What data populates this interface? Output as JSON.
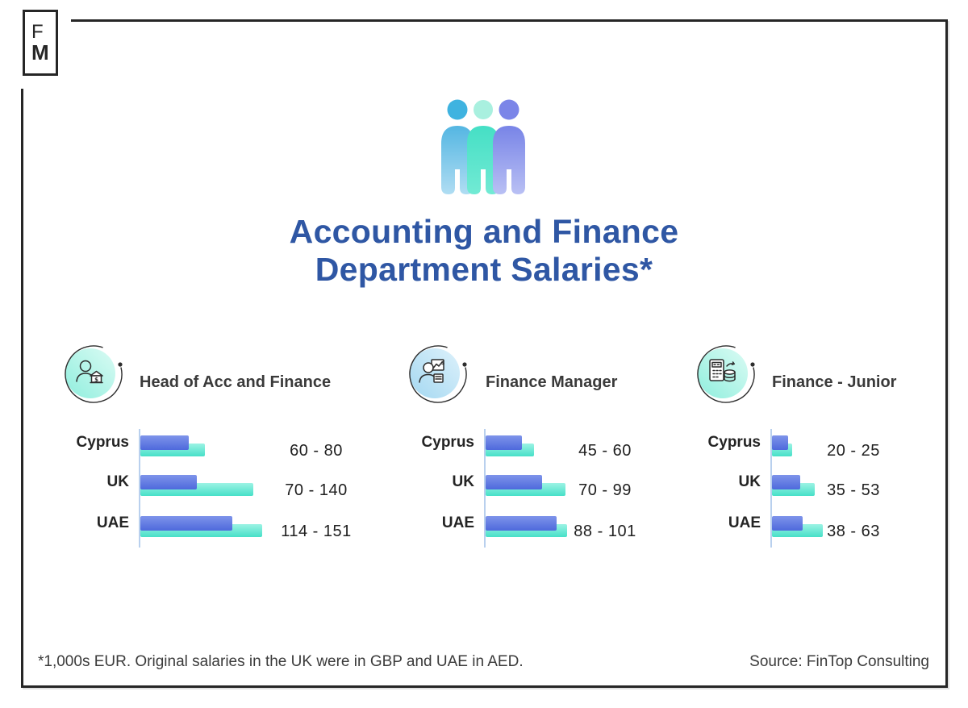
{
  "logo": {
    "letter1": "F",
    "letter2": "M"
  },
  "header": {
    "title_line1": "Accounting and Finance",
    "title_line2": "Department Salaries*"
  },
  "groups": [
    {
      "label": "Head of Acc and Finance",
      "icon": "person-bank-icon",
      "badge_theme": "mint"
    },
    {
      "label": "Finance Manager",
      "icon": "person-chart-calculator-icon",
      "badge_theme": "blue"
    },
    {
      "label": "Finance - Junior",
      "icon": "calculator-coins-icon",
      "badge_theme": "mint"
    }
  ],
  "chart_data": [
    {
      "type": "bar",
      "orientation": "horizontal",
      "title": "Head of Acc and Finance",
      "categories": [
        "Cyprus",
        "UK",
        "UAE"
      ],
      "series": [
        {
          "name": "salary min",
          "values": [
            60,
            70,
            114
          ]
        },
        {
          "name": "salary max",
          "values": [
            80,
            140,
            151
          ]
        }
      ],
      "range_labels": [
        "60 - 80",
        "70 - 140",
        "114 - 151"
      ],
      "unit": "1,000s EUR",
      "xlim": [
        0,
        160
      ],
      "grid": false,
      "legend": false
    },
    {
      "type": "bar",
      "orientation": "horizontal",
      "title": "Finance Manager",
      "categories": [
        "Cyprus",
        "UK",
        "UAE"
      ],
      "series": [
        {
          "name": "salary min",
          "values": [
            45,
            70,
            88
          ]
        },
        {
          "name": "salary max",
          "values": [
            60,
            99,
            101
          ]
        }
      ],
      "range_labels": [
        "45 - 60",
        "70 - 99",
        "88 - 101"
      ],
      "unit": "1,000s EUR",
      "xlim": [
        0,
        160
      ],
      "grid": false,
      "legend": false
    },
    {
      "type": "bar",
      "orientation": "horizontal",
      "title": "Finance - Junior",
      "categories": [
        "Cyprus",
        "UK",
        "UAE"
      ],
      "series": [
        {
          "name": "salary min",
          "values": [
            20,
            35,
            38
          ]
        },
        {
          "name": "salary max",
          "values": [
            25,
            53,
            63
          ]
        }
      ],
      "range_labels": [
        "20 - 25",
        "35 - 53",
        "38 - 63"
      ],
      "unit": "1,000s EUR",
      "xlim": [
        0,
        160
      ],
      "grid": false,
      "legend": false
    }
  ],
  "footer": {
    "note": "*1,000s EUR. Original salaries in the UK were in GBP and UAE in AED.",
    "source": "Source: FinTop Consulting"
  },
  "colors": {
    "title": "#2f57a4",
    "bar_min_top": "#7e94ea",
    "bar_min_bottom": "#4e69dc",
    "bar_max_top": "#9cf3e4",
    "bar_max_bottom": "#47e0c8",
    "axis": "#b9d0ee",
    "frame": "#262626",
    "text": "#2b2b2b"
  }
}
